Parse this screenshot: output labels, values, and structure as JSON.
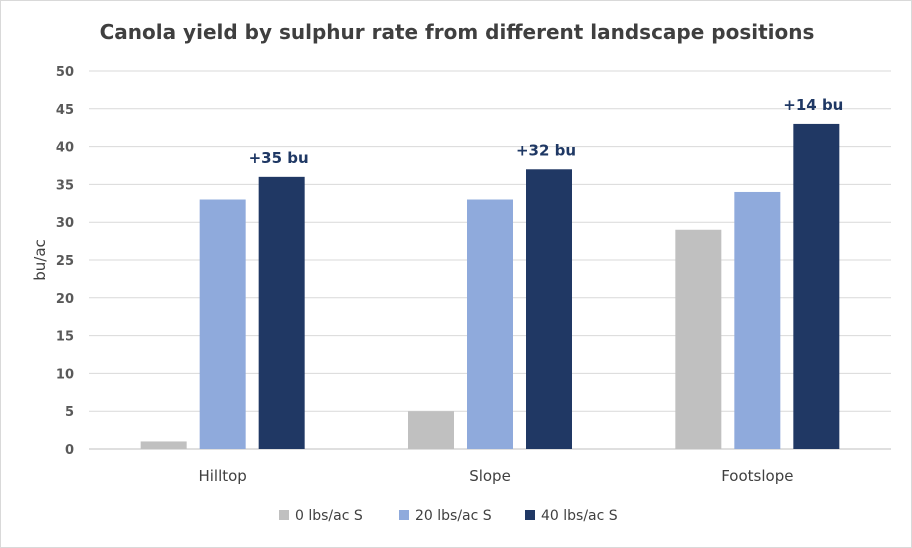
{
  "chart_data": {
    "type": "bar",
    "title": "Canola yield by sulphur rate from different landscape positions",
    "xlabel": "",
    "ylabel": "bu/ac",
    "ylim": [
      0,
      50
    ],
    "yticks": [
      0,
      5,
      10,
      15,
      20,
      25,
      30,
      35,
      40,
      45,
      50
    ],
    "grid": true,
    "legend_position": "bottom",
    "categories": [
      "Hilltop",
      "Slope",
      "Footslope"
    ],
    "series": [
      {
        "name": "0 lbs/ac S",
        "color": "#c0c0c0",
        "values": [
          1,
          5,
          29
        ]
      },
      {
        "name": "20 lbs/ac S",
        "color": "#8faadc",
        "values": [
          33,
          33,
          34
        ]
      },
      {
        "name": "40 lbs/ac S",
        "color": "#203864",
        "values": [
          36,
          37,
          43
        ]
      }
    ],
    "annotations": [
      {
        "category": "Hilltop",
        "series": "40 lbs/ac S",
        "text": "+35 bu"
      },
      {
        "category": "Slope",
        "series": "40 lbs/ac S",
        "text": "+32 bu"
      },
      {
        "category": "Footslope",
        "series": "40 lbs/ac S",
        "text": "+14 bu"
      }
    ]
  }
}
